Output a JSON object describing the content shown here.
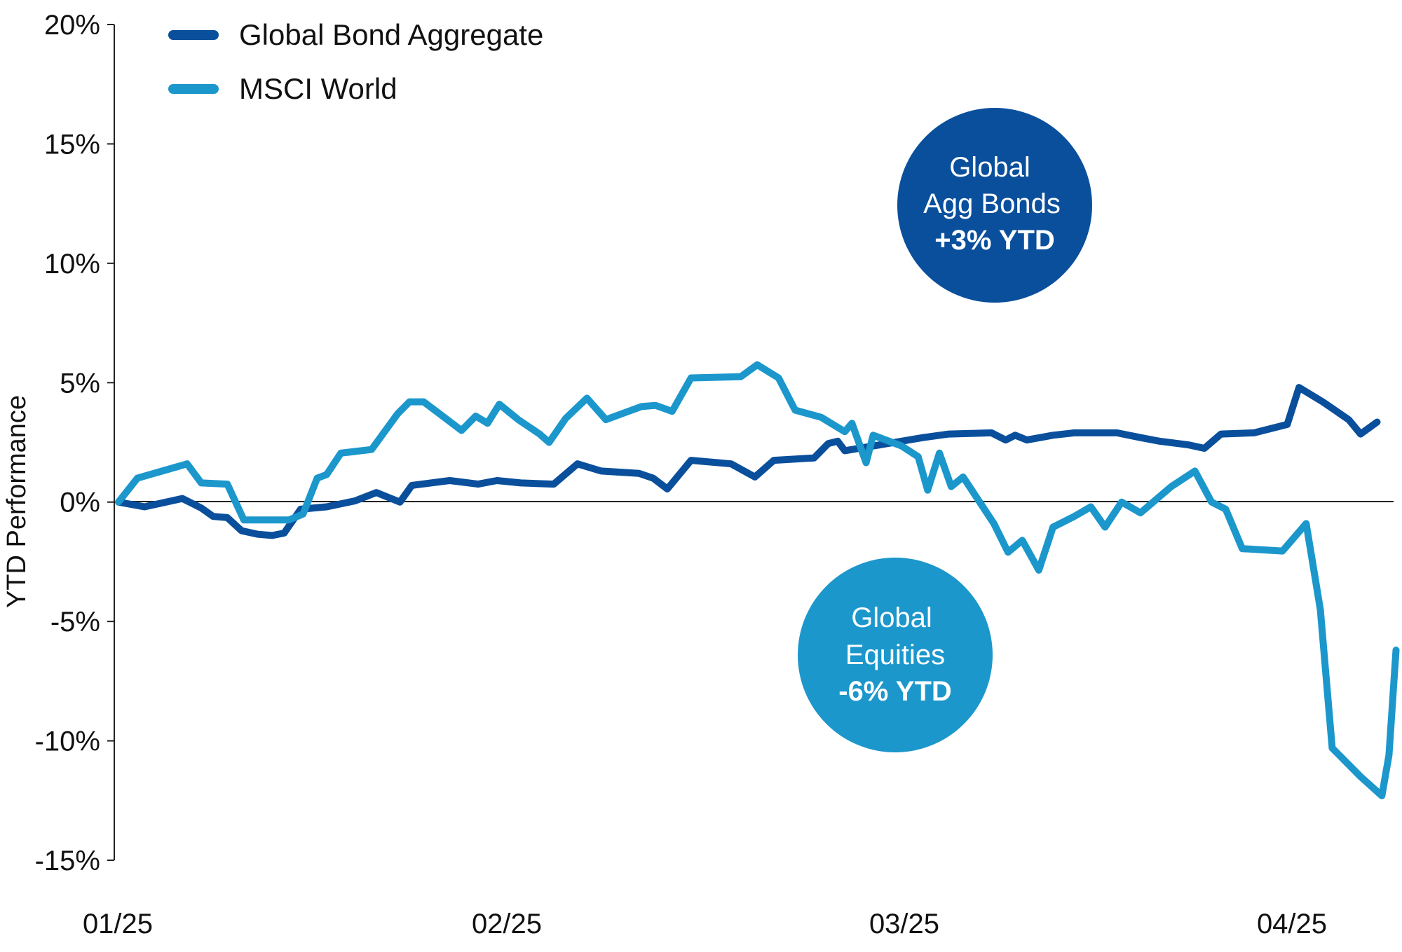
{
  "chart_data": {
    "type": "line",
    "ylabel": "YTD Performance",
    "xlabel": "",
    "x_tick_labels": [
      "01/25",
      "02/25",
      "03/25",
      "04/25"
    ],
    "y_tick_labels": [
      "20%",
      "15%",
      "10%",
      "5%",
      "0%",
      "-5%",
      "-10%",
      "-15%"
    ],
    "ylim": [
      -15,
      20
    ],
    "grid": false,
    "zero_line": true,
    "legend_position": "top-left",
    "series": [
      {
        "name": "Global Bond Aggregate",
        "color": "#0a4f9c",
        "points": [
          [
            0.0,
            0.0
          ],
          [
            0.55,
            -0.2
          ],
          [
            1.35,
            0.15
          ],
          [
            1.75,
            -0.25
          ],
          [
            2.0,
            -0.6
          ],
          [
            2.3,
            -0.65
          ],
          [
            2.6,
            -1.2
          ],
          [
            2.95,
            -1.35
          ],
          [
            3.25,
            -1.4
          ],
          [
            3.5,
            -1.3
          ],
          [
            3.85,
            -0.3
          ],
          [
            4.4,
            -0.2
          ],
          [
            5.0,
            0.05
          ],
          [
            5.45,
            0.4
          ],
          [
            5.95,
            0.0
          ],
          [
            6.2,
            0.7
          ],
          [
            7.0,
            0.9
          ],
          [
            7.6,
            0.75
          ],
          [
            8.0,
            0.9
          ],
          [
            8.5,
            0.8
          ],
          [
            9.2,
            0.75
          ],
          [
            9.7,
            1.6
          ],
          [
            10.2,
            1.3
          ],
          [
            11.0,
            1.2
          ],
          [
            11.3,
            1.0
          ],
          [
            11.6,
            0.55
          ],
          [
            12.1,
            1.75
          ],
          [
            12.95,
            1.6
          ],
          [
            13.45,
            1.05
          ],
          [
            13.85,
            1.75
          ],
          [
            14.7,
            1.85
          ],
          [
            15.0,
            2.45
          ],
          [
            15.2,
            2.55
          ],
          [
            15.35,
            2.15
          ],
          [
            16.1,
            2.4
          ],
          [
            17.0,
            2.7
          ],
          [
            17.55,
            2.85
          ],
          [
            18.45,
            2.9
          ],
          [
            18.75,
            2.6
          ],
          [
            18.95,
            2.8
          ],
          [
            19.2,
            2.6
          ],
          [
            19.75,
            2.8
          ],
          [
            20.2,
            2.9
          ],
          [
            21.1,
            2.9
          ],
          [
            21.6,
            2.7
          ],
          [
            22.0,
            2.55
          ],
          [
            22.6,
            2.4
          ],
          [
            22.95,
            2.25
          ],
          [
            23.3,
            2.85
          ],
          [
            24.0,
            2.9
          ],
          [
            24.7,
            3.25
          ],
          [
            24.95,
            4.8
          ],
          [
            25.45,
            4.2
          ],
          [
            26.0,
            3.45
          ],
          [
            26.25,
            2.85
          ],
          [
            26.6,
            3.35
          ]
        ]
      },
      {
        "name": "MSCI World",
        "color": "#1b97cc",
        "points": [
          [
            0.0,
            0.0
          ],
          [
            0.4,
            1.0
          ],
          [
            1.45,
            1.6
          ],
          [
            1.75,
            0.8
          ],
          [
            2.3,
            0.75
          ],
          [
            2.65,
            -0.75
          ],
          [
            3.6,
            -0.75
          ],
          [
            3.9,
            -0.5
          ],
          [
            4.2,
            1.0
          ],
          [
            4.4,
            1.15
          ],
          [
            4.7,
            2.05
          ],
          [
            5.35,
            2.2
          ],
          [
            5.9,
            3.7
          ],
          [
            6.15,
            4.2
          ],
          [
            6.45,
            4.2
          ],
          [
            7.25,
            3.0
          ],
          [
            7.55,
            3.6
          ],
          [
            7.8,
            3.3
          ],
          [
            8.05,
            4.1
          ],
          [
            8.45,
            3.45
          ],
          [
            8.9,
            2.85
          ],
          [
            9.1,
            2.5
          ],
          [
            9.45,
            3.5
          ],
          [
            9.9,
            4.35
          ],
          [
            10.3,
            3.45
          ],
          [
            11.05,
            4.0
          ],
          [
            11.35,
            4.05
          ],
          [
            11.7,
            3.8
          ],
          [
            12.1,
            5.2
          ],
          [
            13.15,
            5.25
          ],
          [
            13.5,
            5.75
          ],
          [
            13.95,
            5.2
          ],
          [
            14.3,
            3.85
          ],
          [
            14.85,
            3.55
          ],
          [
            15.35,
            2.95
          ],
          [
            15.5,
            3.3
          ],
          [
            15.8,
            1.65
          ],
          [
            15.95,
            2.8
          ],
          [
            16.55,
            2.35
          ],
          [
            16.9,
            1.9
          ],
          [
            17.1,
            0.5
          ],
          [
            17.35,
            2.05
          ],
          [
            17.6,
            0.65
          ],
          [
            17.85,
            1.05
          ],
          [
            18.5,
            -0.9
          ],
          [
            18.8,
            -2.1
          ],
          [
            19.1,
            -1.6
          ],
          [
            19.45,
            -2.85
          ],
          [
            19.75,
            -1.05
          ],
          [
            20.2,
            -0.6
          ],
          [
            20.55,
            -0.2
          ],
          [
            20.85,
            -1.05
          ],
          [
            21.2,
            0.0
          ],
          [
            21.6,
            -0.45
          ],
          [
            22.25,
            0.65
          ],
          [
            22.75,
            1.3
          ],
          [
            23.1,
            0.0
          ],
          [
            23.4,
            -0.3
          ],
          [
            23.75,
            -1.95
          ],
          [
            24.6,
            -2.05
          ],
          [
            25.1,
            -0.9
          ],
          [
            25.4,
            -4.5
          ],
          [
            25.65,
            -10.3
          ],
          [
            26.25,
            -11.5
          ],
          [
            26.7,
            -12.3
          ],
          [
            26.85,
            -10.6
          ],
          [
            27.0,
            -6.2
          ]
        ]
      }
    ],
    "annotations": [
      {
        "line1": "Global",
        "line2": "Agg Bonds",
        "line3": "+3% YTD",
        "color": "#0a4f9c"
      },
      {
        "line1": "Global",
        "line2": "Equities",
        "line3": "-6% YTD",
        "color": "#1b97cc"
      }
    ]
  }
}
